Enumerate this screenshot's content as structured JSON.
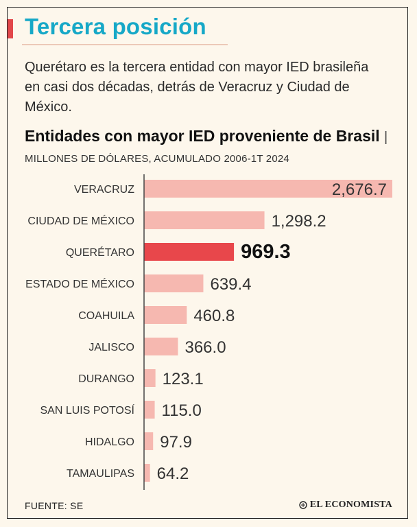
{
  "header": {
    "title": "Tercera posición",
    "subtitle": "Querétaro es la tercera entidad con mayor IED brasileña en casi dos décadas, detrás de Veracruz y Ciudad de México."
  },
  "chart_data": {
    "type": "bar",
    "orientation": "horizontal",
    "title": "Entidades con mayor IED proveniente de Brasil",
    "separator": "|",
    "units": "MILLONES DE DÓLARES, ACUMULADO 2006-1T 2024",
    "categories": [
      "VERACRUZ",
      "CIUDAD DE MÉXICO",
      "QUERÉTARO",
      "ESTADO DE MÉXICO",
      "COAHUILA",
      "JALISCO",
      "DURANGO",
      "SAN LUIS POTOSÍ",
      "HIDALGO",
      "TAMAULIPAS"
    ],
    "values": [
      2676.7,
      1298.2,
      969.3,
      639.4,
      460.8,
      366.0,
      123.1,
      115.0,
      97.9,
      64.2
    ],
    "value_labels": [
      "2,676.7",
      "1,298.2",
      "969.3",
      "639.4",
      "460.8",
      "366.0",
      "123.1",
      "115.0",
      "97.9",
      "64.2"
    ],
    "highlight": "QUERÉTARO",
    "grid": false,
    "colors": {
      "bar": "#f6b8b0",
      "bar_highlight": "#e8474b",
      "axis": "#444444",
      "label": "#333333"
    }
  },
  "footer": {
    "source": "FUENTE: SE",
    "brand": "EL ECONOMISTA",
    "brand_icon": "el-economista-logo-icon"
  },
  "colors": {
    "title": "#16a8c7",
    "accent": "#e2474a",
    "background": "#fdf7ec"
  }
}
